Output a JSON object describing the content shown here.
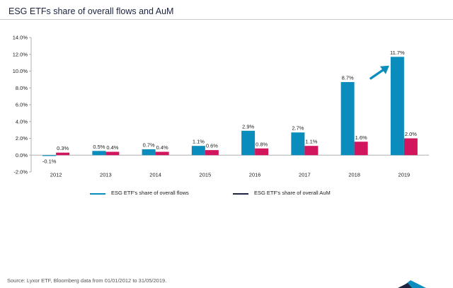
{
  "title": "ESG ETFs share of overall flows and AuM",
  "source": "Source: Lyxor ETF, Bloomberg data from 01/01/2012 to 31/05/2019.",
  "colors": {
    "flows": "#0a8dbd",
    "aum": "#d1165e",
    "arrow": "#0a8dbd",
    "axis": "#b0b0b0",
    "aum_legend_line": "#1c2440"
  },
  "chart_data": {
    "type": "bar",
    "categories": [
      "2012",
      "2013",
      "2014",
      "2015",
      "2016",
      "2017",
      "2018",
      "2019"
    ],
    "series": [
      {
        "name": "ESG ETF's share of overall flows",
        "values": [
          -0.1,
          0.5,
          0.7,
          1.1,
          2.9,
          2.7,
          8.7,
          11.7
        ],
        "labels": [
          "-0.1%",
          "0.5%",
          "0.7%",
          "1.1%",
          "2.9%",
          "2.7%",
          "8.7%",
          "11.7%"
        ]
      },
      {
        "name": "ESG ETF's share of overall AuM",
        "values": [
          0.3,
          0.4,
          0.4,
          0.6,
          0.8,
          1.1,
          1.6,
          2.0
        ],
        "labels": [
          "0.3%",
          "0.4%",
          "0.4%",
          "0.6%",
          "0.8%",
          "1.1%",
          "1.6%",
          "2.0%"
        ]
      }
    ],
    "yticks": [
      "-2.0%",
      "0.0%",
      "2.0%",
      "4.0%",
      "6.0%",
      "8.0%",
      "10.0%",
      "12.0%",
      "14.0%"
    ],
    "ylim": [
      -2,
      14
    ],
    "grid": false,
    "legend_position": "bottom",
    "annotation": "upward arrow next to 2019 flows bar"
  }
}
